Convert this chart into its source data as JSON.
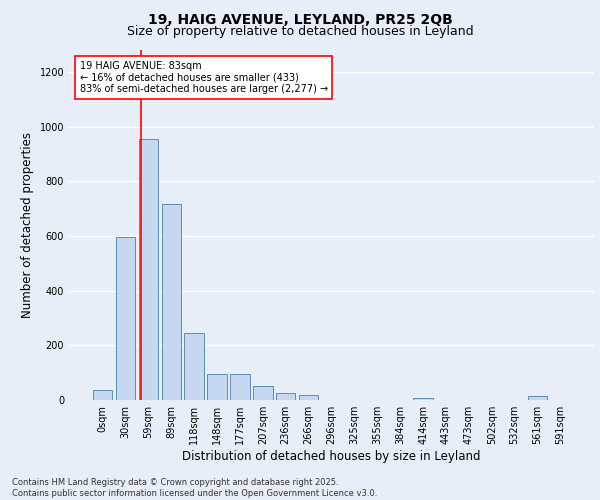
{
  "title": "19, HAIG AVENUE, LEYLAND, PR25 2QB",
  "subtitle": "Size of property relative to detached houses in Leyland",
  "xlabel": "Distribution of detached houses by size in Leyland",
  "ylabel": "Number of detached properties",
  "bar_color": "#c5d8f0",
  "bar_edge_color": "#5b8db8",
  "background_color": "#e8eef8",
  "grid_color": "#ffffff",
  "categories": [
    "0sqm",
    "30sqm",
    "59sqm",
    "89sqm",
    "118sqm",
    "148sqm",
    "177sqm",
    "207sqm",
    "236sqm",
    "266sqm",
    "296sqm",
    "325sqm",
    "355sqm",
    "384sqm",
    "414sqm",
    "443sqm",
    "473sqm",
    "502sqm",
    "532sqm",
    "561sqm",
    "591sqm"
  ],
  "values": [
    35,
    595,
    955,
    715,
    245,
    95,
    95,
    50,
    27,
    18,
    0,
    0,
    0,
    0,
    8,
    0,
    0,
    0,
    0,
    13,
    0
  ],
  "ylim": [
    0,
    1280
  ],
  "yticks": [
    0,
    200,
    400,
    600,
    800,
    1000,
    1200
  ],
  "property_label": "19 HAIG AVENUE: 83sqm",
  "annotation_line1": "← 16% of detached houses are smaller (433)",
  "annotation_line2": "83% of semi-detached houses are larger (2,277) →",
  "vline_x_index": 1.67,
  "footer_line1": "Contains HM Land Registry data © Crown copyright and database right 2025.",
  "footer_line2": "Contains public sector information licensed under the Open Government Licence v3.0.",
  "title_fontsize": 10,
  "subtitle_fontsize": 9,
  "axis_label_fontsize": 8.5,
  "tick_fontsize": 7,
  "annotation_fontsize": 7,
  "footer_fontsize": 6
}
